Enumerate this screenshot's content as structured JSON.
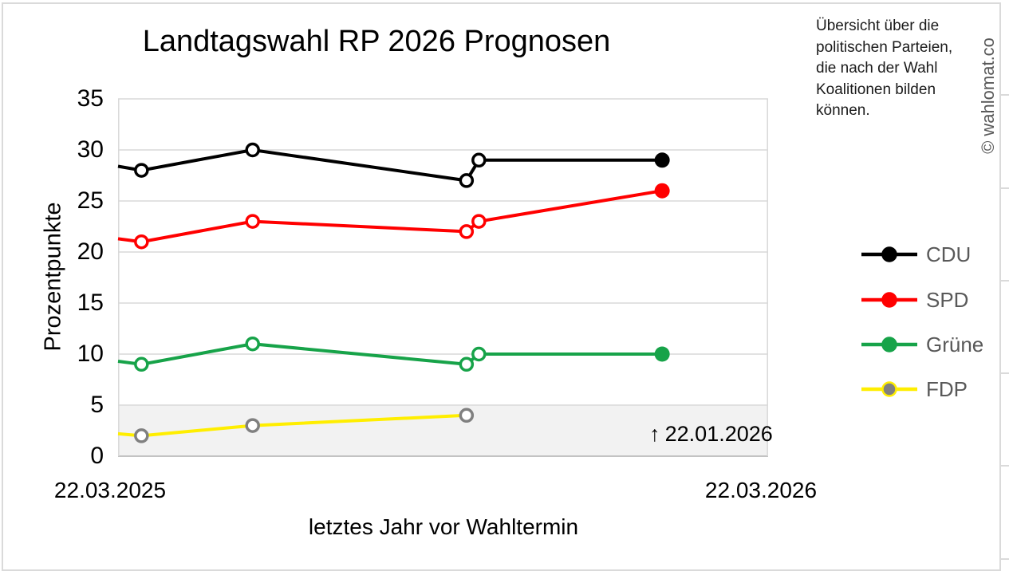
{
  "watermark": "© wahlomat.co",
  "note": {
    "lines": [
      "Übersicht über die",
      "politischen Parteien,",
      "die nach der Wahl",
      "Koalitionen bilden",
      "können."
    ]
  },
  "chart_data": {
    "type": "line",
    "title": "Landtagswahl RP 2026 Prognosen",
    "xlabel": "letztes Jahr vor Wahltermin",
    "ylabel": "Prozentpunkte",
    "ylim": [
      0,
      35
    ],
    "yticks": [
      35,
      30,
      25,
      20,
      15,
      10,
      5,
      0
    ],
    "grid": true,
    "legend_position": "right",
    "x_axis": {
      "start_label": "22.03.2025",
      "end_label": "22.03.2026"
    },
    "band": {
      "y_from": 0,
      "y_to": 5,
      "color": "#f2f2f2"
    },
    "annotation": {
      "arrow": "↑",
      "text": "22.01.2026",
      "x_fraction": 0.837
    },
    "series": [
      {
        "name": "CDU",
        "line_color": "#000000",
        "marker_color": "#000000",
        "points": [
          {
            "x": 0.0,
            "y": 28.4,
            "marker": "none"
          },
          {
            "x": 0.036,
            "y": 28,
            "marker": "open"
          },
          {
            "x": 0.207,
            "y": 30,
            "marker": "open"
          },
          {
            "x": 0.536,
            "y": 27,
            "marker": "open"
          },
          {
            "x": 0.555,
            "y": 29,
            "marker": "open"
          },
          {
            "x": 0.837,
            "y": 29,
            "marker": "solid"
          }
        ]
      },
      {
        "name": "SPD",
        "line_color": "#ff0000",
        "marker_color": "#ff0000",
        "points": [
          {
            "x": 0.0,
            "y": 21.3,
            "marker": "none"
          },
          {
            "x": 0.036,
            "y": 21,
            "marker": "open"
          },
          {
            "x": 0.207,
            "y": 23,
            "marker": "open"
          },
          {
            "x": 0.536,
            "y": 22,
            "marker": "open"
          },
          {
            "x": 0.555,
            "y": 23,
            "marker": "open"
          },
          {
            "x": 0.837,
            "y": 26,
            "marker": "solid"
          }
        ]
      },
      {
        "name": "Grüne",
        "line_color": "#17a349",
        "marker_color": "#17a349",
        "points": [
          {
            "x": 0.0,
            "y": 9.3,
            "marker": "none"
          },
          {
            "x": 0.036,
            "y": 9,
            "marker": "open"
          },
          {
            "x": 0.207,
            "y": 11,
            "marker": "open"
          },
          {
            "x": 0.536,
            "y": 9,
            "marker": "open"
          },
          {
            "x": 0.555,
            "y": 10,
            "marker": "open"
          },
          {
            "x": 0.837,
            "y": 10,
            "marker": "solid"
          }
        ]
      },
      {
        "name": "FDP",
        "line_color": "#ffee00",
        "marker_color": "#808080",
        "points": [
          {
            "x": 0.0,
            "y": 2.2,
            "marker": "none"
          },
          {
            "x": 0.036,
            "y": 2,
            "marker": "open"
          },
          {
            "x": 0.207,
            "y": 3,
            "marker": "open"
          },
          {
            "x": 0.536,
            "y": 4,
            "marker": "open"
          }
        ]
      }
    ]
  }
}
